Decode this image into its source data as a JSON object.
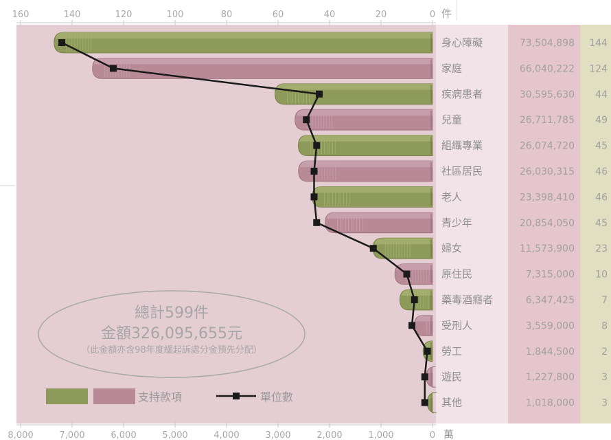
{
  "chart_data": {
    "type": "bar",
    "orientation": "horizontal",
    "categories": [
      "身心障礙",
      "家庭",
      "疾病患者",
      "兒童",
      "組織專業",
      "社區居民",
      "老人",
      "青少年",
      "婦女",
      "原住民",
      "藥毒酒癮者",
      "受刑人",
      "勞工",
      "遊民",
      "其他"
    ],
    "amounts": [
      "73,504,898",
      "66,040,222",
      "30,595,630",
      "26,711,785",
      "26,074,720",
      "26,030,315",
      "23,398,410",
      "20,854,050",
      "11,573,900",
      "7,315,000",
      "6,347,425",
      "3,559,000",
      "1,844,500",
      "1,227,800",
      "1,018,000"
    ],
    "series": [
      {
        "name": "支持款項",
        "values": [
          7350.4898,
          6604.0222,
          3059.563,
          2671.1785,
          2607.472,
          2603.0315,
          2339.841,
          2085.405,
          1157.39,
          731.5,
          634.7425,
          355.9,
          184.45,
          122.78,
          101.8
        ]
      },
      {
        "name": "單位數",
        "values": [
          144,
          124,
          44,
          49,
          45,
          46,
          46,
          45,
          23,
          10,
          7,
          8,
          2,
          3,
          3
        ]
      }
    ],
    "x_bottom": {
      "unit": "萬",
      "range": [
        0,
        8000
      ],
      "ticks": [
        "8,000",
        "7,000",
        "6,000",
        "5,000",
        "4,000",
        "3,000",
        "2,000",
        "1,000",
        "0"
      ]
    },
    "x_top": {
      "unit": "件",
      "range": [
        0,
        160
      ],
      "ticks": [
        "160",
        "140",
        "120",
        "100",
        "80",
        "60",
        "40",
        "20",
        "0"
      ]
    },
    "bar_colors": [
      "#8e9a5a",
      "#b88a98"
    ],
    "line_color": "#1a1a1a",
    "grid": false,
    "legend_position": "bottom-left"
  },
  "total": {
    "line1": "總計599件",
    "line2": "金額326,095,655元",
    "line3": "（此金額亦含98年度緩起訴處分金預先分配）"
  }
}
